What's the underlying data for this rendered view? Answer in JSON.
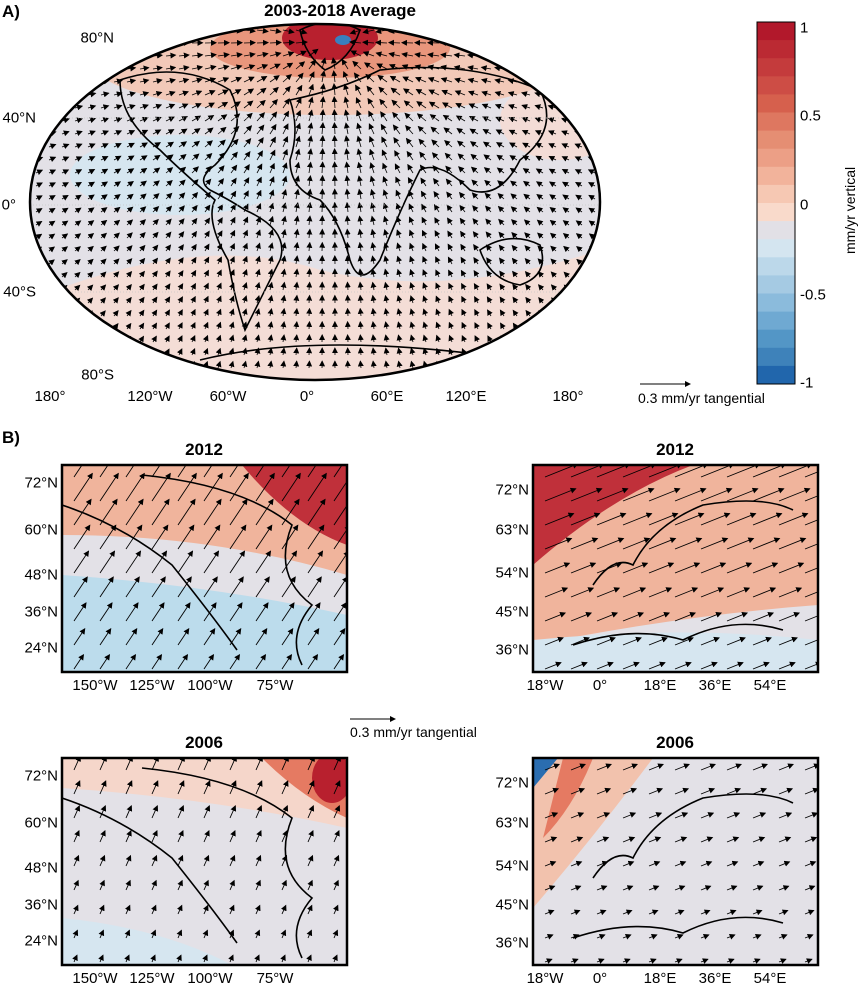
{
  "panel_a": {
    "label": "A)",
    "title": "2003-2018 Average",
    "lat_ticks": [
      "80°N",
      "40°N",
      "0°",
      "40°S",
      "80°S"
    ],
    "lon_ticks": [
      "180°",
      "120°W",
      "60°W",
      "0°",
      "60°E",
      "120°E",
      "180°"
    ],
    "reference_arrow": "0.3 mm/yr tangential"
  },
  "colorbar": {
    "label": "mm/yr vertical",
    "ticks": [
      "1",
      "0.5",
      "0",
      "-0.5",
      "-1"
    ],
    "range": [
      -1,
      1
    ],
    "steps": 20,
    "colors": {
      "max": "#b2182b",
      "mid": "#e2e0e6",
      "min": "#2166ac"
    }
  },
  "panel_b": {
    "label": "B)",
    "reference_arrow": "0.3 mm/yr tangential",
    "maps": [
      {
        "title": "2012",
        "region": "north-america",
        "lat_ticks": [
          "72°N",
          "60°N",
          "48°N",
          "36°N",
          "24°N"
        ],
        "lon_ticks": [
          "150°W",
          "125°W",
          "100°W",
          "75°W"
        ]
      },
      {
        "title": "2012",
        "region": "europe",
        "lat_ticks": [
          "72°N",
          "63°N",
          "54°N",
          "45°N",
          "36°N"
        ],
        "lon_ticks": [
          "18°W",
          "0°",
          "18°E",
          "36°E",
          "54°E"
        ]
      },
      {
        "title": "2006",
        "region": "north-america",
        "lat_ticks": [
          "72°N",
          "60°N",
          "48°N",
          "36°N",
          "24°N"
        ],
        "lon_ticks": [
          "150°W",
          "125°W",
          "100°W",
          "75°W"
        ]
      },
      {
        "title": "2006",
        "region": "europe",
        "lat_ticks": [
          "72°N",
          "63°N",
          "54°N",
          "45°N",
          "36°N"
        ],
        "lon_ticks": [
          "18°W",
          "0°",
          "18°E",
          "36°E",
          "54°E"
        ]
      }
    ]
  }
}
